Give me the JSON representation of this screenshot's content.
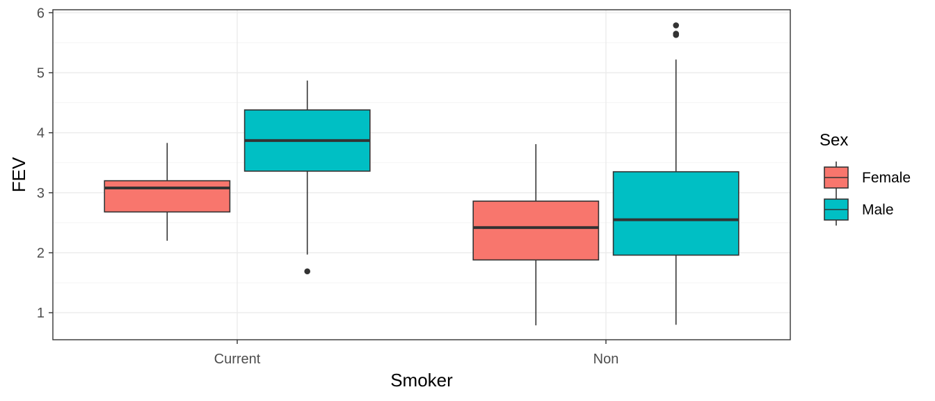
{
  "chart_data": {
    "type": "box",
    "title": "",
    "xlabel": "Smoker",
    "ylabel": "FEV",
    "categories": [
      "Current",
      "Non"
    ],
    "ylim": [
      0.55,
      6.05
    ],
    "yticks": [
      1,
      2,
      3,
      4,
      5,
      6
    ],
    "grid": true,
    "legend": {
      "title": "Sex",
      "position": "right"
    },
    "series": [
      {
        "name": "Female",
        "color": "#F8766D",
        "boxes": [
          {
            "category": "Current",
            "whisker_low": 2.2,
            "q1": 2.68,
            "median": 3.08,
            "q3": 3.2,
            "whisker_high": 3.83,
            "outliers": []
          },
          {
            "category": "Non",
            "whisker_low": 0.79,
            "q1": 1.88,
            "median": 2.42,
            "q3": 2.86,
            "whisker_high": 3.81,
            "outliers": []
          }
        ]
      },
      {
        "name": "Male",
        "color": "#00BFC4",
        "boxes": [
          {
            "category": "Current",
            "whisker_low": 1.97,
            "q1": 3.36,
            "median": 3.87,
            "q3": 4.38,
            "whisker_high": 4.87,
            "outliers": [
              1.69
            ]
          },
          {
            "category": "Non",
            "whisker_low": 0.8,
            "q1": 1.96,
            "median": 2.55,
            "q3": 3.35,
            "whisker_high": 5.22,
            "outliers": [
              5.63,
              5.65,
              5.79
            ]
          }
        ]
      }
    ]
  }
}
